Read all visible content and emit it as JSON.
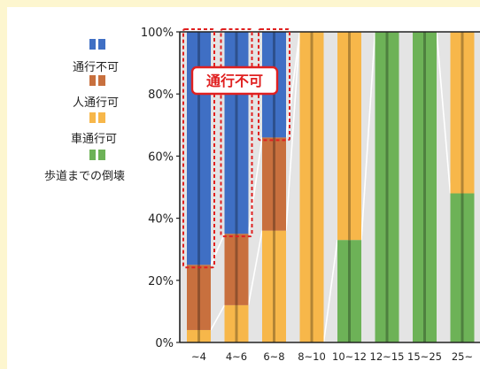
{
  "chart_data": {
    "type": "bar",
    "stacked": true,
    "categories": [
      "~4",
      "4~6",
      "6~8",
      "8~10",
      "10~12",
      "12~15",
      "15~25",
      "25~"
    ],
    "ylim": [
      0,
      100
    ],
    "y_ticks": [
      "0%",
      "20%",
      "40%",
      "60%",
      "80%",
      "100%"
    ],
    "series": [
      {
        "name": "歩道までの倒壊",
        "color": "#6db257",
        "values": [
          0,
          0,
          0,
          0,
          33,
          100,
          100,
          48
        ]
      },
      {
        "name": "車通行可",
        "color": "#f7b74a",
        "values": [
          4,
          12,
          36,
          100,
          67,
          0,
          0,
          52
        ]
      },
      {
        "name": "人通行可",
        "color": "#c8703e",
        "values": [
          21,
          23,
          30,
          0,
          0,
          0,
          0,
          0
        ]
      },
      {
        "name": "通行不可",
        "color": "#3f6fc4",
        "values": [
          75,
          65,
          34,
          0,
          0,
          0,
          0,
          0
        ]
      }
    ],
    "legend_order": [
      "通行不可",
      "人通行可",
      "車通行可",
      "歩道までの倒壊"
    ],
    "legend_position": "left",
    "annotation": {
      "text": "通行不可",
      "highlight_categories": [
        "~4",
        "4~6",
        "6~8"
      ],
      "color": "#e02020"
    },
    "colors": {
      "plot_background": "#e4e4e4",
      "page_background": "#fdf6cf"
    }
  }
}
